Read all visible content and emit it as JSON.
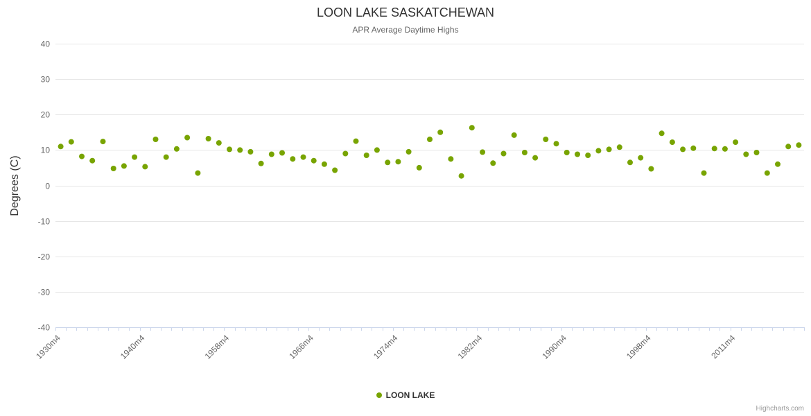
{
  "chart": {
    "title": "LOON LAKE SASKATCHEWAN",
    "subtitle": "APR Average Daytime Highs",
    "y_axis_title": "Degrees (C)"
  },
  "legend": {
    "label": "LOON LAKE"
  },
  "credits": "Highcharts.com",
  "chart_data": {
    "type": "scatter",
    "title": "LOON LAKE SASKATCHEWAN",
    "subtitle": "APR Average Daytime Highs",
    "xlabel": "",
    "ylabel": "Degrees (C)",
    "series_name": "LOON LAKE",
    "marker_color": "#78a402",
    "grid_color": "#e6e6e6",
    "axis_color": "#ccd6eb",
    "label_color": "#666666",
    "legend_position": "bottom",
    "grid": true,
    "ylim": [
      -40,
      40
    ],
    "y_ticks": [
      40,
      30,
      20,
      10,
      0,
      -10,
      -20,
      -30,
      -40
    ],
    "x_tick_interval": 8,
    "x_tick_labels": [
      "1930m4",
      "1940m4",
      "1958m4",
      "1966m4",
      "1974m4",
      "1982m4",
      "1990m4",
      "1998m4",
      "2011m4"
    ],
    "values": [
      11,
      12.3,
      8.2,
      7,
      12.4,
      4.8,
      5.5,
      8,
      5.3,
      13,
      8,
      10.3,
      13.5,
      3.5,
      13.2,
      12,
      10.2,
      10,
      9.5,
      6.2,
      8.8,
      9.2,
      7.5,
      8,
      7,
      6,
      4.3,
      9,
      12.5,
      8.5,
      10,
      6.5,
      6.7,
      9.5,
      5,
      13,
      15,
      7.5,
      2.7,
      16.3,
      9.4,
      6.3,
      9,
      14.2,
      9.3,
      7.8,
      13,
      11.8,
      9.3,
      8.8,
      8.5,
      9.8,
      10.2,
      10.8,
      6.5,
      7.8,
      4.7,
      14.7,
      12.2,
      10.2,
      10.5,
      3.5,
      10.4,
      10.3,
      12.2,
      8.8,
      9.3,
      3.5,
      6,
      11,
      11.4
    ]
  }
}
